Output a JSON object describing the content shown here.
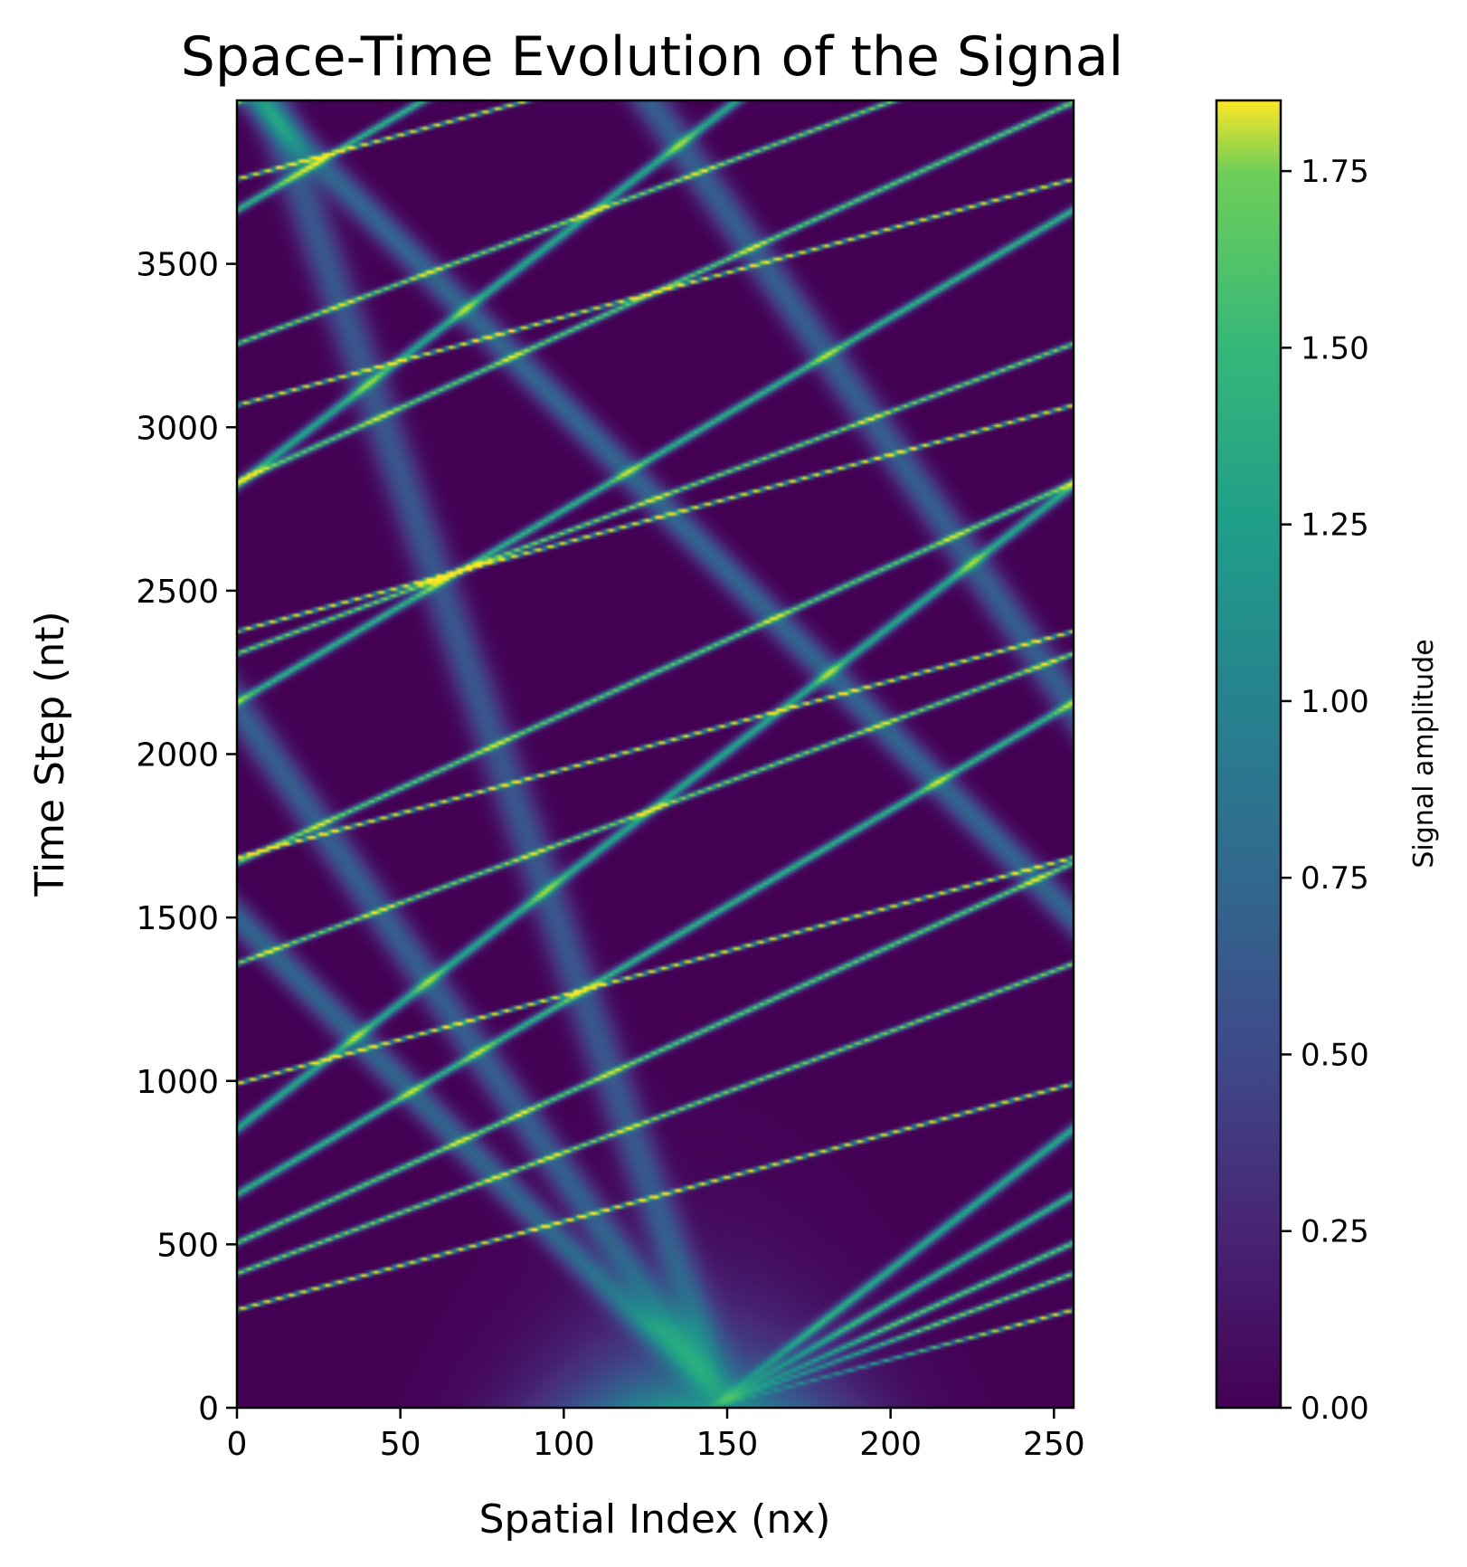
{
  "chart_data": {
    "type": "heatmap",
    "title": "Space-Time Evolution of the Signal",
    "xlabel": "Spatial Index (nx)",
    "ylabel": "Time Step (nt)",
    "xlim": [
      0,
      256
    ],
    "ylim": [
      0,
      4000
    ],
    "xticks": [
      0,
      50,
      100,
      150,
      200,
      250
    ],
    "yticks": [
      0,
      500,
      1000,
      1500,
      2000,
      2500,
      3000,
      3500
    ],
    "colormap": "viridis",
    "colorbar": {
      "label": "Signal amplitude",
      "range": [
        0,
        1.85
      ],
      "ticks": [
        "0.00",
        "0.25",
        "0.50",
        "0.75",
        "1.00",
        "1.25",
        "1.50",
        "1.75"
      ]
    },
    "background_amplitude": 0.0,
    "initial_pulse": {
      "center_x": 140,
      "amplitude": 1.0,
      "width": 30
    },
    "domain": "periodic",
    "right_moving_solitons": [
      {
        "x0": 145,
        "t0": 0,
        "speed": 0.37,
        "amplitude": 1.85
      },
      {
        "x0": 145,
        "t0": 0,
        "speed": 0.27,
        "amplitude": 1.55
      },
      {
        "x0": 145,
        "t0": 0,
        "speed": 0.22,
        "amplitude": 1.45
      },
      {
        "x0": 145,
        "t0": 0,
        "speed": 0.17,
        "amplitude": 1.25
      },
      {
        "x0": 145,
        "t0": 0,
        "speed": 0.13,
        "amplitude": 1.15
      }
    ],
    "left_moving_waves": [
      {
        "x0": 150,
        "t0": 0,
        "speed": -0.035,
        "amplitude": 0.5
      },
      {
        "x0": 150,
        "t0": 0,
        "speed": -0.07,
        "amplitude": 0.55
      },
      {
        "x0": 150,
        "t0": 0,
        "speed": -0.1,
        "amplitude": 0.6
      }
    ]
  }
}
